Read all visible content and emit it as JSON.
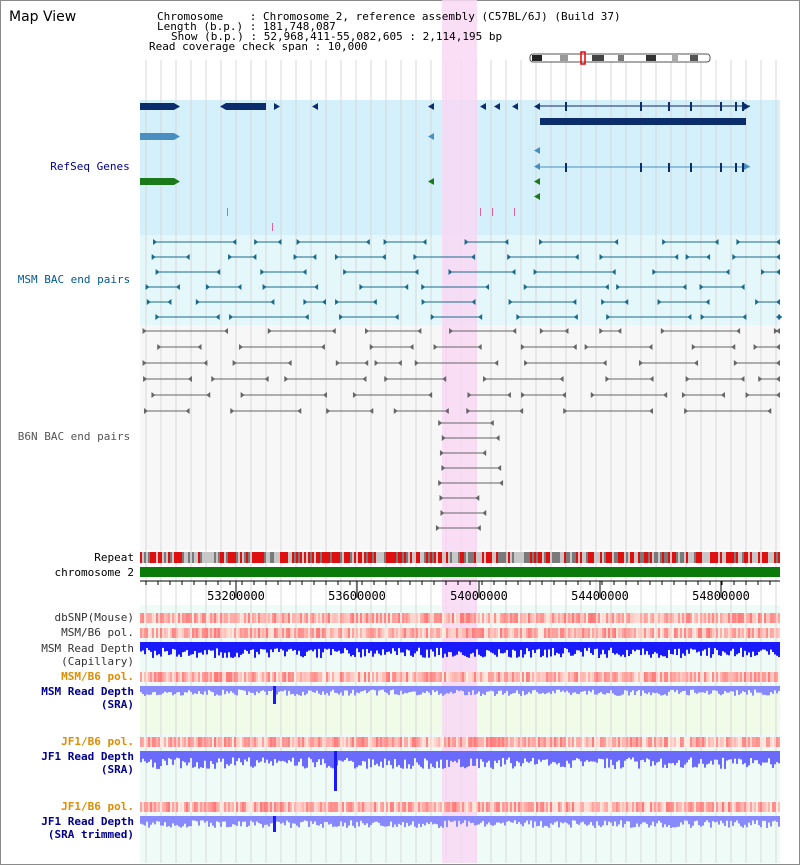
{
  "window": {
    "title": "Map View"
  },
  "info": {
    "chromosome": "Chromosome    : Chromosome 2, reference assembly (C57BL/6J) (Build 37)",
    "length": "Length (b.p.) : 181,748,087",
    "show": "Show (b.p.) : 52,968,411-55,082,605 : 2,114,195 bp",
    "coverage": "Read coverage check span : 10,000"
  },
  "tracks": {
    "refseq": "RefSeq Genes",
    "msm_bac": "MSM BAC end pairs",
    "b6n_bac": "B6N BAC end pairs",
    "repeat": "Repeat",
    "chromosome": "chromosome 2",
    "dbsnp": "dbSNP(Mouse)",
    "msm_b6_pol": "MSM/B6 pol.",
    "msm_depth_cap_1": "MSM Read Depth",
    "msm_depth_cap_2": "(Capillary)",
    "msm_b6_pol_2": "MSM/B6 pol.",
    "msm_depth_sra_1": "MSM Read Depth",
    "msm_depth_sra_2": "(SRA)",
    "jf1_b6_pol": "JF1/B6 pol.",
    "jf1_depth_sra_1": "JF1 Read Depth",
    "jf1_depth_sra_2": "(SRA)",
    "jf1_b6_pol_2": "JF1/B6 pol.",
    "jf1_depth_trim_1": "JF1 Read Depth",
    "jf1_depth_trim_2": "(SRA trimmed)"
  },
  "ruler": {
    "ticks": [
      "53200000",
      "53600000",
      "54000000",
      "54400000",
      "54800000"
    ]
  },
  "colors": {
    "highlight": "#f8d8f4",
    "refseq_bg": "#d4f0fb",
    "msm_bg": "#e4f8fb",
    "grid": "#d8d8d8",
    "gene_dark": "#0c2d6b",
    "gene_light": "#4a8fc0",
    "gene_green": "#1a7a1a",
    "chromosome": "#0a7a0a",
    "label_blue": "#00008b",
    "label_orange": "#e08c00",
    "label_gray": "#333333",
    "depth_dark": "#1a1aff",
    "depth_light": "#8888ff"
  }
}
